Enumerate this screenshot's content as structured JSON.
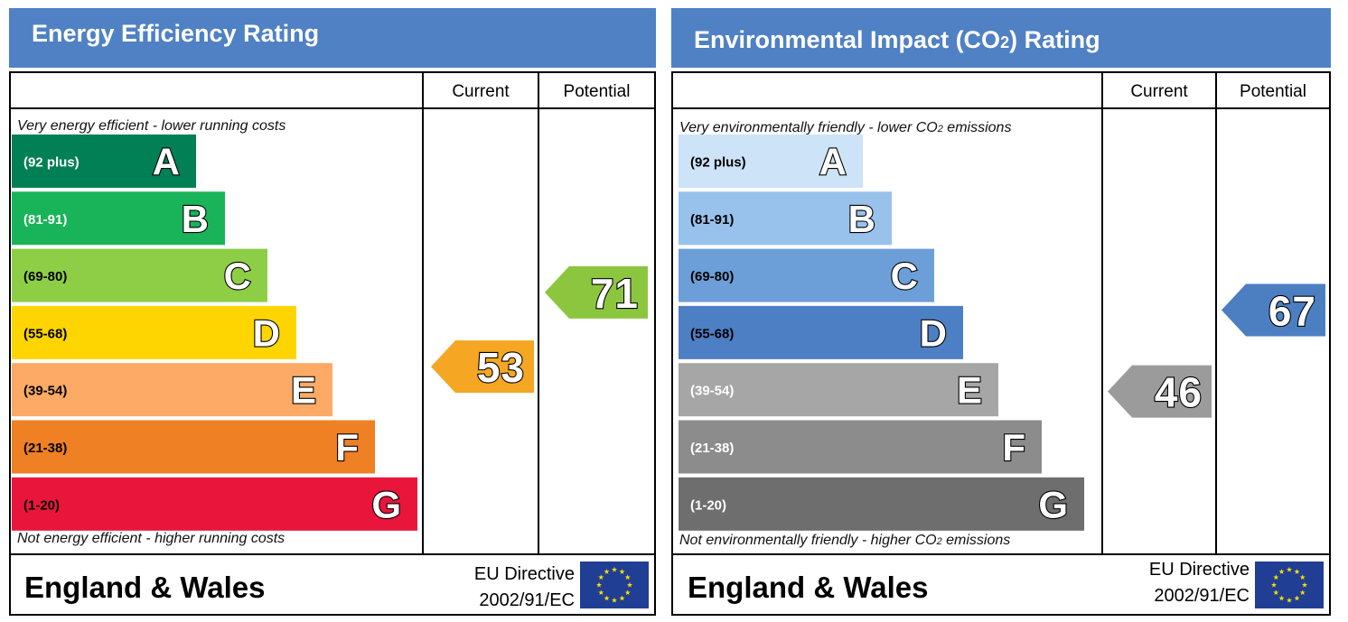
{
  "energy": {
    "title": "Energy Efficiency Rating",
    "col_current": "Current",
    "col_potential": "Potential",
    "top_note": "Very energy efficient - lower running costs",
    "bottom_note": "Not energy efficient - higher running costs",
    "footer_region": "England & Wales",
    "eu_directive": "EU Directive",
    "eu_code": "2002/91/EC",
    "eu_flag_icon": "eu-flag-icon",
    "chart_data": {
      "type": "bar",
      "categories": [
        "A",
        "B",
        "C",
        "D",
        "E",
        "F",
        "G"
      ],
      "ranges": [
        "(92 plus)",
        "(81-91)",
        "(69-80)",
        "(55-68)",
        "(39-54)",
        "(21-38)",
        "(1-20)"
      ],
      "colors": [
        "#008054",
        "#19b459",
        "#8dce46",
        "#ffd500",
        "#fcaa65",
        "#ef8023",
        "#e9153b"
      ],
      "current": {
        "value": 53,
        "band": "E",
        "color": "#f5a623"
      },
      "potential": {
        "value": 71,
        "band": "C",
        "color": "#8cc63f"
      }
    }
  },
  "environment": {
    "title_pre": "Environmental Impact (CO",
    "title_sub": "2",
    "title_post": ") Rating",
    "col_current": "Current",
    "col_potential": "Potential",
    "top_note_pre": "Very environmentally friendly - lower CO",
    "top_note_sub": "2",
    "top_note_post": " emissions",
    "bottom_note_pre": "Not environmentally friendly - higher CO",
    "bottom_note_sub": "2",
    "bottom_note_post": " emissions",
    "footer_region": "England & Wales",
    "eu_directive": "EU Directive",
    "eu_code": "2002/91/EC",
    "eu_flag_icon": "eu-flag-icon",
    "chart_data": {
      "type": "bar",
      "categories": [
        "A",
        "B",
        "C",
        "D",
        "E",
        "F",
        "G"
      ],
      "ranges": [
        "(92 plus)",
        "(81-91)",
        "(69-80)",
        "(55-68)",
        "(39-54)",
        "(21-38)",
        "(1-20)"
      ],
      "colors": [
        "#cde3f7",
        "#98c2ec",
        "#6c9fd8",
        "#4d7fc4",
        "#a6a6a6",
        "#8c8c8c",
        "#6e6e6e"
      ],
      "current": {
        "value": 46,
        "band": "E",
        "color": "#9b9b9b"
      },
      "potential": {
        "value": 67,
        "band": "D",
        "color": "#4b7fc2"
      }
    }
  }
}
